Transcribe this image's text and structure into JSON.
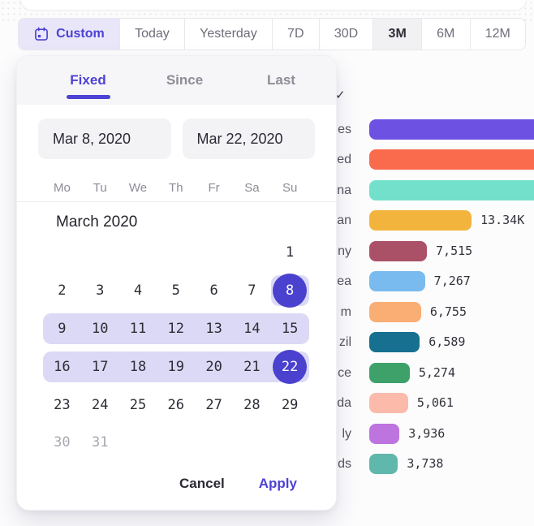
{
  "colors": {
    "accent": "#4C42D4",
    "selected_circle": "#4A42CE",
    "range_band": "#DCD9F6",
    "custom_segment_bg": "#E9E6FA",
    "selected_segment_bg": "#F1F0F3"
  },
  "toolbar": {
    "items": [
      {
        "label": "Custom",
        "icon": "calendar",
        "state": "custom"
      },
      {
        "label": "Today",
        "state": ""
      },
      {
        "label": "Yesterday",
        "state": ""
      },
      {
        "label": "7D",
        "state": ""
      },
      {
        "label": "30D",
        "state": ""
      },
      {
        "label": "3M",
        "state": "selected"
      },
      {
        "label": "6M",
        "state": ""
      },
      {
        "label": "12M",
        "state": ""
      }
    ]
  },
  "popup": {
    "tabs": [
      {
        "label": "Fixed",
        "active": true
      },
      {
        "label": "Since",
        "active": false
      },
      {
        "label": "Last",
        "active": false
      }
    ],
    "start_date": "Mar 8, 2020",
    "end_date": "Mar 22, 2020",
    "weekdays": [
      "Mo",
      "Tu",
      "We",
      "Th",
      "Fr",
      "Sa",
      "Su"
    ],
    "month_title": "March 2020",
    "weeks": [
      [
        null,
        null,
        null,
        null,
        null,
        null,
        1
      ],
      [
        2,
        3,
        4,
        5,
        6,
        7,
        8
      ],
      [
        9,
        10,
        11,
        12,
        13,
        14,
        15
      ],
      [
        16,
        17,
        18,
        19,
        20,
        21,
        22
      ],
      [
        23,
        24,
        25,
        26,
        27,
        28,
        29
      ],
      [
        30,
        31,
        null,
        null,
        null,
        null,
        null
      ]
    ],
    "selected_days": [
      8,
      22
    ],
    "range": {
      "start": 8,
      "end": 22
    },
    "muted_days": [
      30,
      31
    ],
    "cancel_label": "Cancel",
    "apply_label": "Apply"
  },
  "background_check": "✓",
  "chart_data": {
    "type": "bar",
    "orientation": "horizontal",
    "categories_visible_fragments": [
      "es",
      "ed",
      "na",
      "an",
      "ny",
      "ea",
      "m",
      "zil",
      "ce",
      "da",
      "ly",
      "ds"
    ],
    "values": [
      null,
      null,
      null,
      13340,
      7515,
      7267,
      6755,
      6589,
      5274,
      5061,
      3936,
      3738
    ],
    "value_labels": [
      "",
      "",
      "",
      "13.34K",
      "7,515",
      "7,267",
      "6,755",
      "6,589",
      "5,274",
      "5,061",
      "3,936",
      "3,738"
    ],
    "colors": [
      "#6C51E3",
      "#FA6B4D",
      "#72E0CB",
      "#F2B43C",
      "#AA5168",
      "#79BBEF",
      "#FBAE74",
      "#17708F",
      "#3EA169",
      "#FBBAAA",
      "#BD74DF",
      "#60B8AC"
    ],
    "note": "category labels truncated by overlaying popup; top three bars extend past right edge of viewport"
  }
}
